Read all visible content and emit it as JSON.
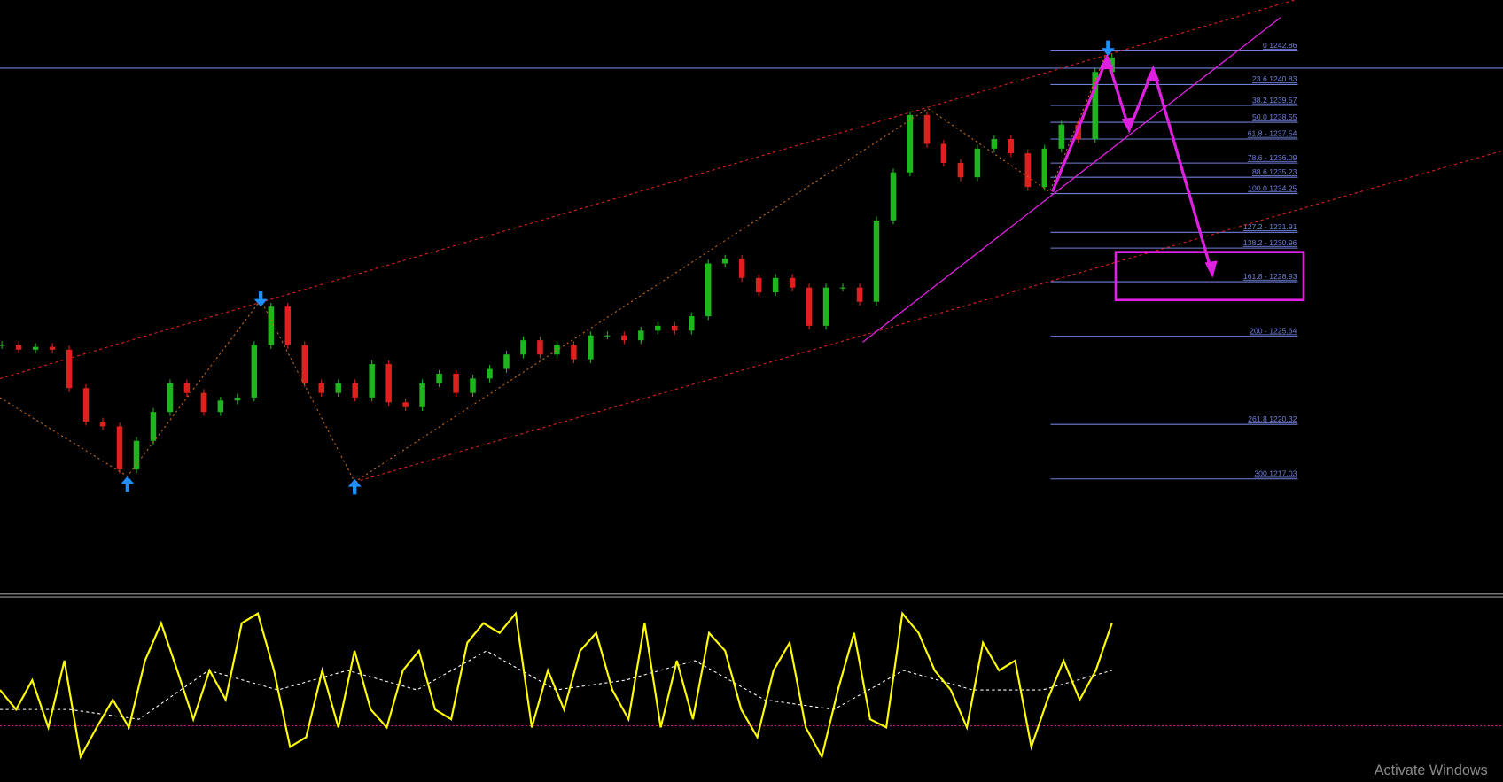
{
  "chart_data": [
    {
      "type": "candlestick",
      "closes": [
        1225.11,
        1224.83,
        1225.0,
        1224.83,
        1222.51,
        1220.49,
        1220.2,
        1217.6,
        1219.33,
        1221.07,
        1222.8,
        1222.22,
        1221.07,
        1221.76,
        1221.94,
        1225.11,
        1227.43,
        1225.11,
        1222.8,
        1222.22,
        1222.8,
        1221.94,
        1223.96,
        1221.65,
        1221.36,
        1222.8,
        1223.38,
        1222.22,
        1223.09,
        1223.67,
        1224.54,
        1225.4,
        1224.54,
        1225.11,
        1224.25,
        1225.69,
        1225.69,
        1225.4,
        1225.98,
        1226.27,
        1225.98,
        1226.85,
        1230.03,
        1230.32,
        1229.16,
        1228.29,
        1229.16,
        1228.58,
        1226.27,
        1228.58,
        1228.58,
        1227.72,
        1232.63,
        1235.52,
        1238.99,
        1237.25,
        1236.1,
        1235.23,
        1236.96,
        1237.54,
        1236.68,
        1234.65,
        1236.96,
        1238.41,
        1237.54,
        1241.59,
        1242.46
      ],
      "ylim": [
        1210.08,
        1245.92
      ],
      "up_color": "#1fb51f",
      "down_color": "#e0201e",
      "fib_color": "#6f7fd8",
      "fib_levels": [
        {
          "value": 1242.86,
          "label": "0 1242.86"
        },
        {
          "value": 1240.83,
          "label": "23.6 1240.83"
        },
        {
          "value": 1239.57,
          "label": "38.2 1239.57"
        },
        {
          "value": 1238.55,
          "label": "50.0 1238.55"
        },
        {
          "value": 1237.54,
          "label": "61.8 - 1237.54"
        },
        {
          "value": 1236.09,
          "label": "78.6 - 1236.09"
        },
        {
          "value": 1235.23,
          "label": "88.6 1235.23"
        },
        {
          "value": 1234.25,
          "label": "100.0 1234.25"
        },
        {
          "value": 1231.91,
          "label": "127.2 - 1231.91"
        },
        {
          "value": 1230.96,
          "label": "138.2 - 1230.96"
        },
        {
          "value": 1228.93,
          "label": "161.8 -  1228.93"
        },
        {
          "value": 1225.64,
          "label": "200 - 1225.64"
        },
        {
          "value": 1220.32,
          "label": "261.8 1220.32"
        },
        {
          "value": 1217.03,
          "label": "300 1217.03"
        }
      ],
      "price_line": 1241.82
    },
    {
      "type": "line",
      "values": [
        47,
        35,
        53,
        24,
        65,
        6,
        24,
        41,
        24,
        65,
        88,
        59,
        29,
        59,
        41,
        88,
        94,
        59,
        12,
        18,
        59,
        24,
        71,
        35,
        24,
        59,
        71,
        35,
        29,
        76,
        88,
        82,
        94,
        24,
        59,
        35,
        71,
        82,
        47,
        29,
        88,
        24,
        65,
        29,
        82,
        71,
        35,
        18,
        59,
        76,
        24,
        6,
        47,
        82,
        29,
        24,
        94,
        82,
        59,
        47,
        24,
        76,
        59,
        65,
        12,
        41,
        65,
        41,
        59,
        88
      ],
      "color": "#ffff00",
      "signal": [
        35,
        35,
        29,
        59,
        47,
        59,
        47,
        71,
        47,
        53,
        65,
        41,
        35,
        59,
        47,
        47,
        59
      ],
      "signal_color": "#ffffff",
      "ylim": [
        0,
        100
      ],
      "level": 25,
      "level_color": "#c0208a"
    }
  ],
  "watermark": "Activate Windows"
}
